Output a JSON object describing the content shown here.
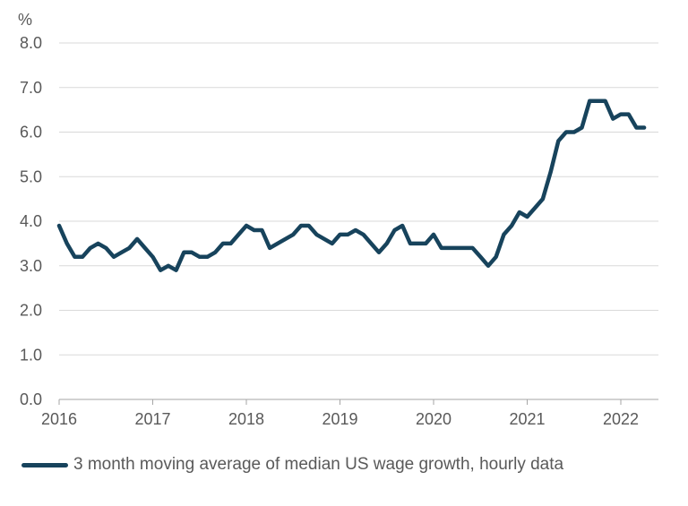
{
  "chart_data": {
    "type": "line",
    "y_unit_label": "%",
    "ylim": [
      0,
      8
    ],
    "y_ticks": [
      "0.0",
      "1.0",
      "2.0",
      "3.0",
      "4.0",
      "5.0",
      "6.0",
      "7.0",
      "8.0"
    ],
    "x_ticks": [
      "2016",
      "2017",
      "2018",
      "2019",
      "2020",
      "2021",
      "2022"
    ],
    "xlim": [
      "2016-01",
      "2022-04"
    ],
    "grid": true,
    "legend_position": "bottom",
    "series": [
      {
        "name": "3 month moving average of median US wage growth, hourly data",
        "color": "#17435c",
        "x": [
          "2016-01",
          "2016-02",
          "2016-03",
          "2016-04",
          "2016-05",
          "2016-06",
          "2016-07",
          "2016-08",
          "2016-09",
          "2016-10",
          "2016-11",
          "2016-12",
          "2017-01",
          "2017-02",
          "2017-03",
          "2017-04",
          "2017-05",
          "2017-06",
          "2017-07",
          "2017-08",
          "2017-09",
          "2017-10",
          "2017-11",
          "2017-12",
          "2018-01",
          "2018-02",
          "2018-03",
          "2018-04",
          "2018-05",
          "2018-06",
          "2018-07",
          "2018-08",
          "2018-09",
          "2018-10",
          "2018-11",
          "2018-12",
          "2019-01",
          "2019-02",
          "2019-03",
          "2019-04",
          "2019-05",
          "2019-06",
          "2019-07",
          "2019-08",
          "2019-09",
          "2019-10",
          "2019-11",
          "2019-12",
          "2020-01",
          "2020-02",
          "2020-03",
          "2020-04",
          "2020-05",
          "2020-06",
          "2020-07",
          "2020-08",
          "2020-09",
          "2020-10",
          "2020-11",
          "2020-12",
          "2021-01",
          "2021-02",
          "2021-03",
          "2021-04",
          "2021-05",
          "2021-06",
          "2021-07",
          "2021-08",
          "2021-09",
          "2021-10",
          "2021-11",
          "2021-12",
          "2022-01",
          "2022-02",
          "2022-03",
          "2022-04"
        ],
        "y": [
          3.9,
          3.5,
          3.2,
          3.2,
          3.4,
          3.5,
          3.4,
          3.2,
          3.3,
          3.4,
          3.6,
          3.4,
          3.2,
          2.9,
          3.0,
          2.9,
          3.3,
          3.3,
          3.2,
          3.2,
          3.3,
          3.5,
          3.5,
          3.7,
          3.9,
          3.8,
          3.8,
          3.4,
          3.5,
          3.6,
          3.7,
          3.9,
          3.9,
          3.7,
          3.6,
          3.5,
          3.7,
          3.7,
          3.8,
          3.7,
          3.5,
          3.3,
          3.5,
          3.8,
          3.9,
          3.5,
          3.5,
          3.5,
          3.7,
          3.4,
          3.4,
          3.4,
          3.4,
          3.4,
          3.2,
          3.0,
          3.2,
          3.7,
          3.9,
          4.2,
          4.1,
          4.3,
          4.5,
          5.1,
          5.8,
          6.0,
          6.0,
          6.1,
          6.7,
          6.7,
          6.7,
          6.3,
          6.4,
          6.4,
          6.1,
          6.1
        ]
      }
    ]
  }
}
